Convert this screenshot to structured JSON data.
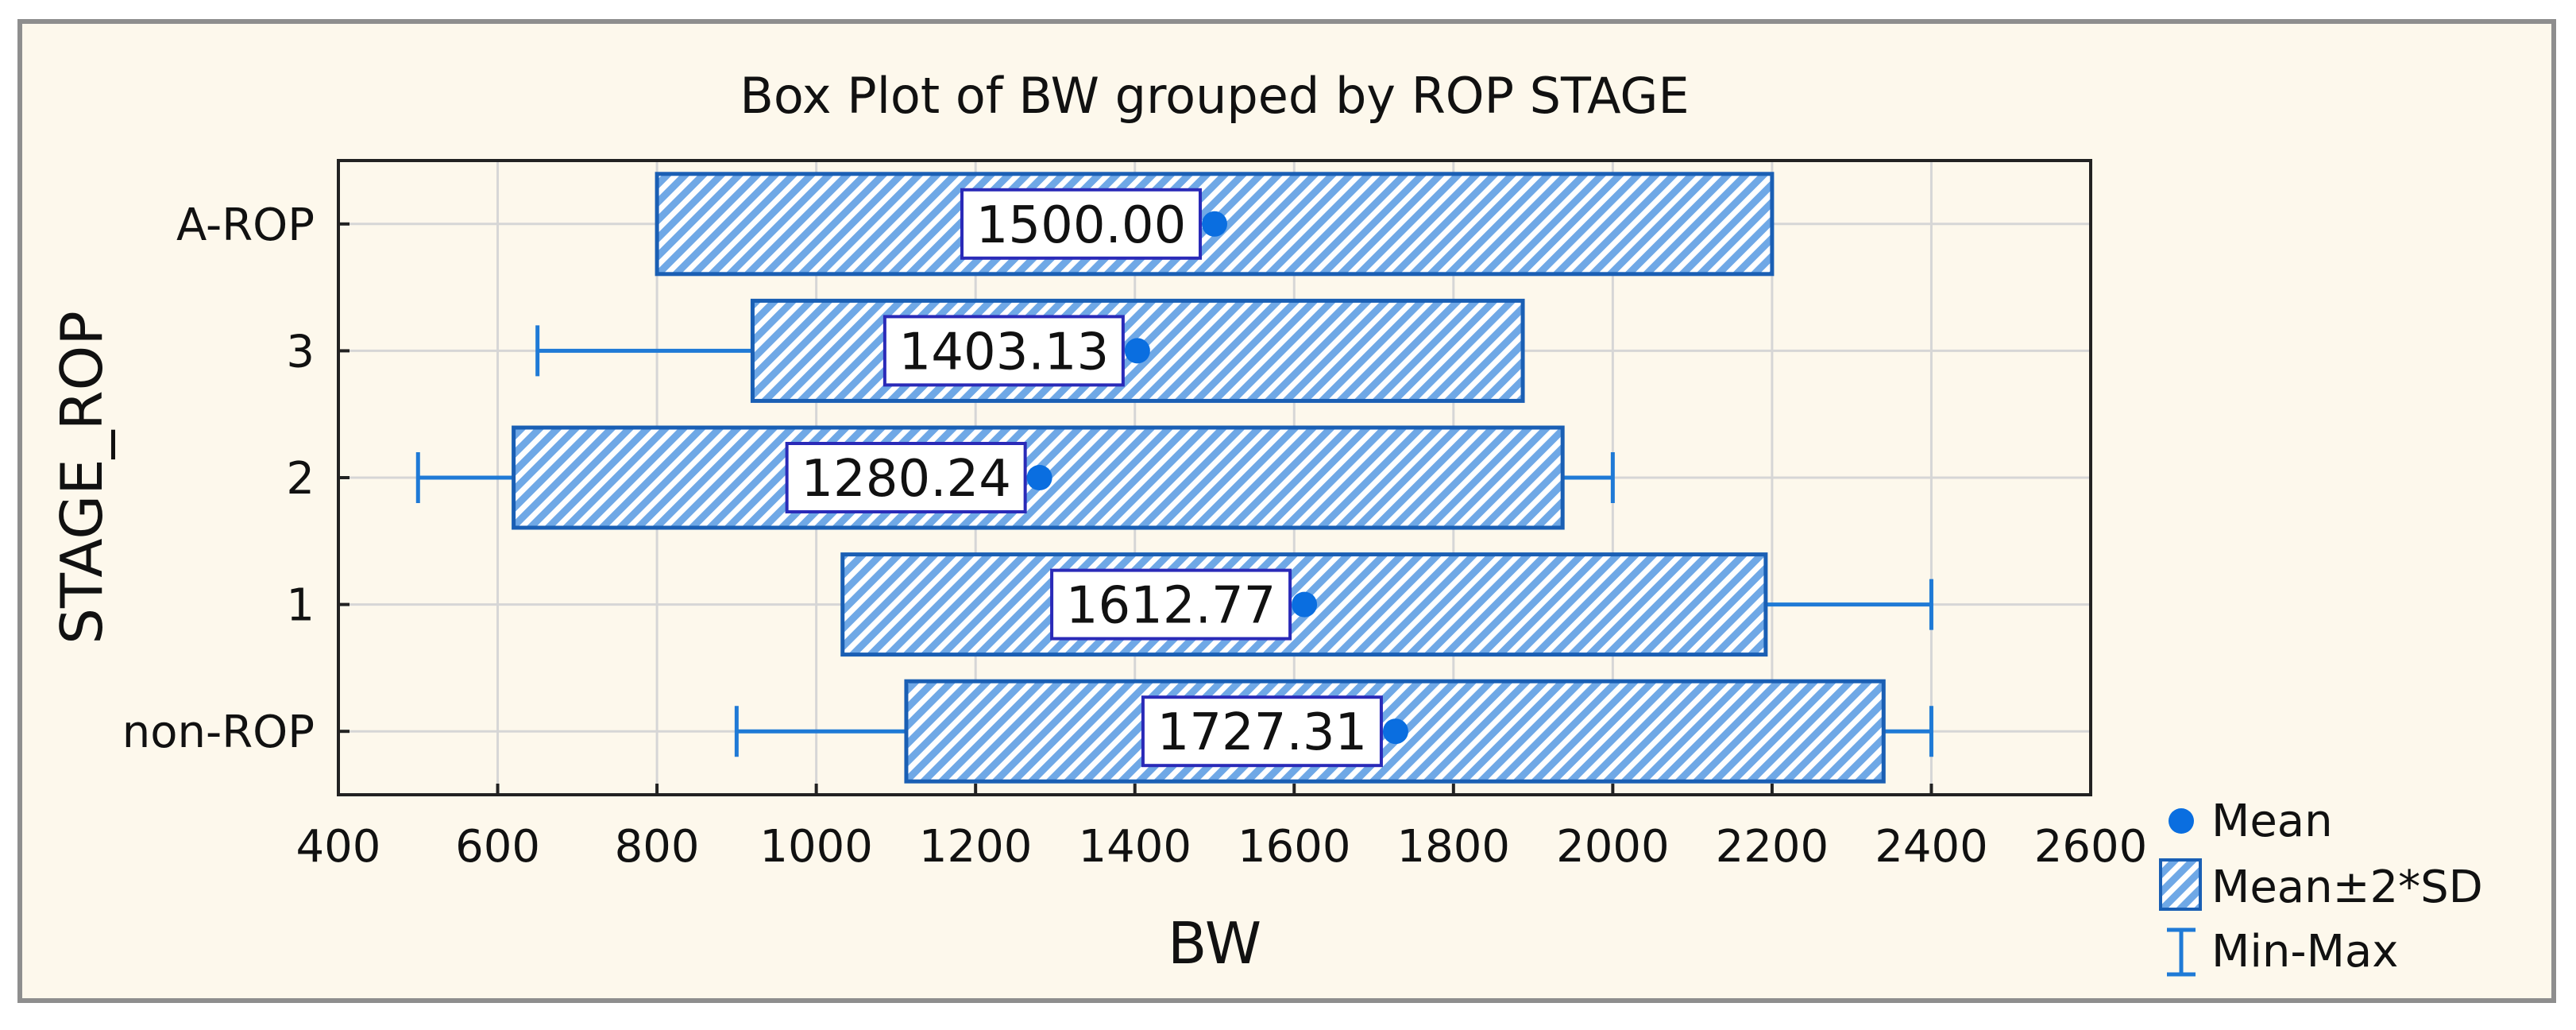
{
  "chart_data": {
    "type": "box",
    "title": "Box Plot of BW grouped by ROP STAGE",
    "xlabel": "BW",
    "ylabel": "STAGE_ROP",
    "xlim": [
      400,
      2600
    ],
    "xticks": [
      400,
      600,
      800,
      1000,
      1200,
      1400,
      1600,
      1800,
      2000,
      2200,
      2400,
      2600
    ],
    "grid": true,
    "legend_position": "bottom-right",
    "legend": [
      "Mean",
      "Mean±2*SD",
      "Min-Max"
    ],
    "colors": {
      "box_stroke": "#1a5fb4",
      "box_fill": "#6fa8e6",
      "mean": "#0a6ee0",
      "whisker": "#1f7ad6",
      "label_border": "#2a2ab8"
    },
    "categories": [
      "A-ROP",
      "3",
      "2",
      "1",
      "non-ROP"
    ],
    "groups": [
      {
        "name": "A-ROP",
        "mean": 1500.0,
        "mean_label": "1500.00",
        "box_low": 800,
        "box_high": 2200,
        "min": 800,
        "max": 2200
      },
      {
        "name": "3",
        "mean": 1403.13,
        "mean_label": "1403.13",
        "box_low": 920,
        "box_high": 1887,
        "min": 650,
        "max": 1887
      },
      {
        "name": "2",
        "mean": 1280.24,
        "mean_label": "1280.24",
        "box_low": 620,
        "box_high": 1937,
        "min": 500,
        "max": 2000
      },
      {
        "name": "1",
        "mean": 1612.77,
        "mean_label": "1612.77",
        "box_low": 1033,
        "box_high": 2192,
        "min": 1033,
        "max": 2400
      },
      {
        "name": "non-ROP",
        "mean": 1727.31,
        "mean_label": "1727.31",
        "box_low": 1113,
        "box_high": 2340,
        "min": 900,
        "max": 2400
      }
    ]
  }
}
